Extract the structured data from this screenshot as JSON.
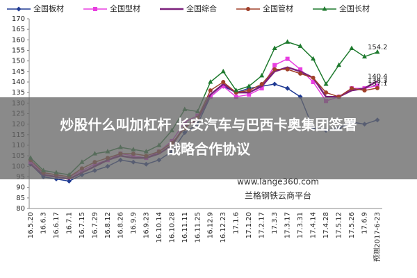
{
  "chart_data": {
    "type": "line",
    "categories": [
      "16.5.20",
      "16.6.3",
      "16.6.17",
      "16.7.1",
      "16.7.15",
      "16.7.29",
      "16.8.12",
      "16.8.26",
      "16.9.9",
      "16.9.23",
      "16.10.14",
      "16.10.28",
      "16.11.11",
      "16.11.25",
      "16.12.9",
      "16.12.23",
      "17.1.6",
      "17.1.20",
      "17.2.17",
      "17.3.3",
      "17.3.17",
      "17.3.31",
      "17.4.14",
      "17.4.28",
      "17.5.12",
      "17.5.26",
      "17.6.9",
      "预测2017-6-23"
    ],
    "series": [
      {
        "name": "全国板材",
        "color": "#1f3a93",
        "marker": "diamond",
        "values": [
          101,
          95,
          94,
          93,
          96,
          98,
          100,
          103,
          102,
          101,
          103,
          107,
          116,
          120,
          133,
          138,
          135,
          137,
          138,
          139,
          137,
          133,
          118,
          117,
          118,
          121,
          120,
          122
        ]
      },
      {
        "name": "全国型材",
        "color": "#e83ee0",
        "marker": "square",
        "label_last": true,
        "values": [
          102,
          97,
          96,
          95,
          98,
          101,
          103,
          106,
          105,
          104,
          107,
          112,
          121,
          124,
          133,
          138,
          133,
          134,
          137,
          148,
          151,
          146,
          140,
          131,
          133,
          137,
          137,
          138.3
        ]
      },
      {
        "name": "全国综合",
        "color": "#7b1f7b",
        "marker": "none",
        "label_last": true,
        "values": [
          101,
          96,
          95,
          94,
          97,
          100,
          103,
          105,
          104,
          104,
          106,
          110,
          119,
          122,
          134,
          139,
          135,
          135,
          138,
          145,
          147,
          145,
          142,
          133,
          133,
          136,
          137,
          140.4
        ]
      },
      {
        "name": "全国管材",
        "color": "#a0402a",
        "marker": "circle",
        "label_last": true,
        "values": [
          103,
          97,
          96,
          95,
          99,
          102,
          104,
          106,
          106,
          105,
          107,
          111,
          118,
          123,
          136,
          140,
          135,
          136,
          139,
          146,
          146,
          144,
          142,
          135,
          133,
          137,
          136,
          137.1
        ]
      },
      {
        "name": "全国长材",
        "color": "#1e7a2e",
        "marker": "triangle",
        "label_last": true,
        "values": [
          104,
          98,
          97,
          96,
          102,
          106,
          107,
          109,
          108,
          107,
          110,
          117,
          127,
          126,
          140,
          145,
          136,
          138,
          143,
          156,
          159,
          157,
          151,
          139,
          148,
          156,
          152,
          154.2
        ]
      }
    ],
    "ylim": [
      80,
      170
    ],
    "yticks": [
      80,
      85,
      90,
      95,
      100,
      105,
      110,
      115,
      120,
      125,
      130,
      135,
      140,
      145,
      150,
      155,
      160,
      165,
      170
    ],
    "grid": false,
    "legend": "top"
  },
  "overlay": {
    "headline": [
      "炒股什么叫加杠杆 长安汽车与巴西卡奥集团签署",
      "战略合作协议"
    ],
    "watermark": [
      "www.lange360.com",
      "兰格钢铁云商平台"
    ]
  }
}
